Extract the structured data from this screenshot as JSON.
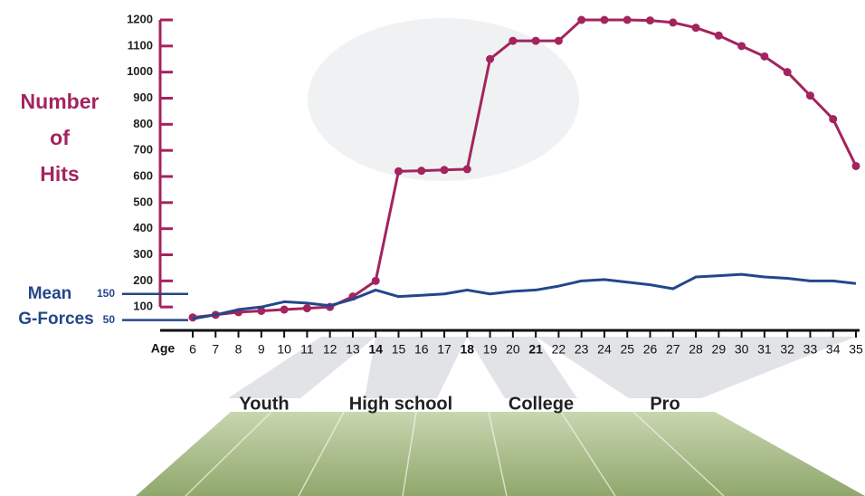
{
  "chart_data": {
    "type": "line",
    "y_label_lines": [
      "Number",
      "of",
      "Hits"
    ],
    "y2_label_lines": [
      "Mean",
      "G-Forces"
    ],
    "x_label": "Age",
    "x": [
      6,
      7,
      8,
      9,
      10,
      11,
      12,
      13,
      14,
      15,
      16,
      17,
      18,
      19,
      20,
      21,
      22,
      23,
      24,
      25,
      26,
      27,
      28,
      29,
      30,
      31,
      32,
      33,
      34,
      35
    ],
    "xlim": [
      6,
      35
    ],
    "bold_ticks": [
      14,
      18,
      21
    ],
    "ylim": [
      0,
      1200
    ],
    "yticks": [
      100,
      200,
      300,
      400,
      500,
      600,
      700,
      800,
      900,
      1000,
      1100,
      1200
    ],
    "y2lim": [
      0,
      1200
    ],
    "y2ticks": [
      50,
      150
    ],
    "series": [
      {
        "name": "Number of Hits",
        "color": "#a3245e",
        "markers": true,
        "values": [
          60,
          70,
          80,
          85,
          90,
          95,
          100,
          140,
          200,
          620,
          622,
          625,
          628,
          1050,
          1120,
          1120,
          1120,
          1200,
          1200,
          1200,
          1198,
          1190,
          1170,
          1140,
          1100,
          1060,
          1000,
          910,
          820,
          640
        ]
      },
      {
        "name": "Mean G-Forces",
        "color": "#24478a",
        "axis": "y2",
        "markers": false,
        "values": [
          55,
          70,
          90,
          100,
          120,
          115,
          105,
          130,
          165,
          140,
          145,
          150,
          165,
          150,
          160,
          165,
          180,
          200,
          205,
          195,
          185,
          170,
          215,
          220,
          225,
          215,
          210,
          200,
          200,
          190
        ]
      }
    ],
    "stages": [
      {
        "label": "Youth",
        "from": 6,
        "to": 14
      },
      {
        "label": "High school",
        "from": 14,
        "to": 18
      },
      {
        "label": "College",
        "from": 18,
        "to": 21
      },
      {
        "label": "Pro",
        "from": 21,
        "to": 35
      }
    ]
  }
}
